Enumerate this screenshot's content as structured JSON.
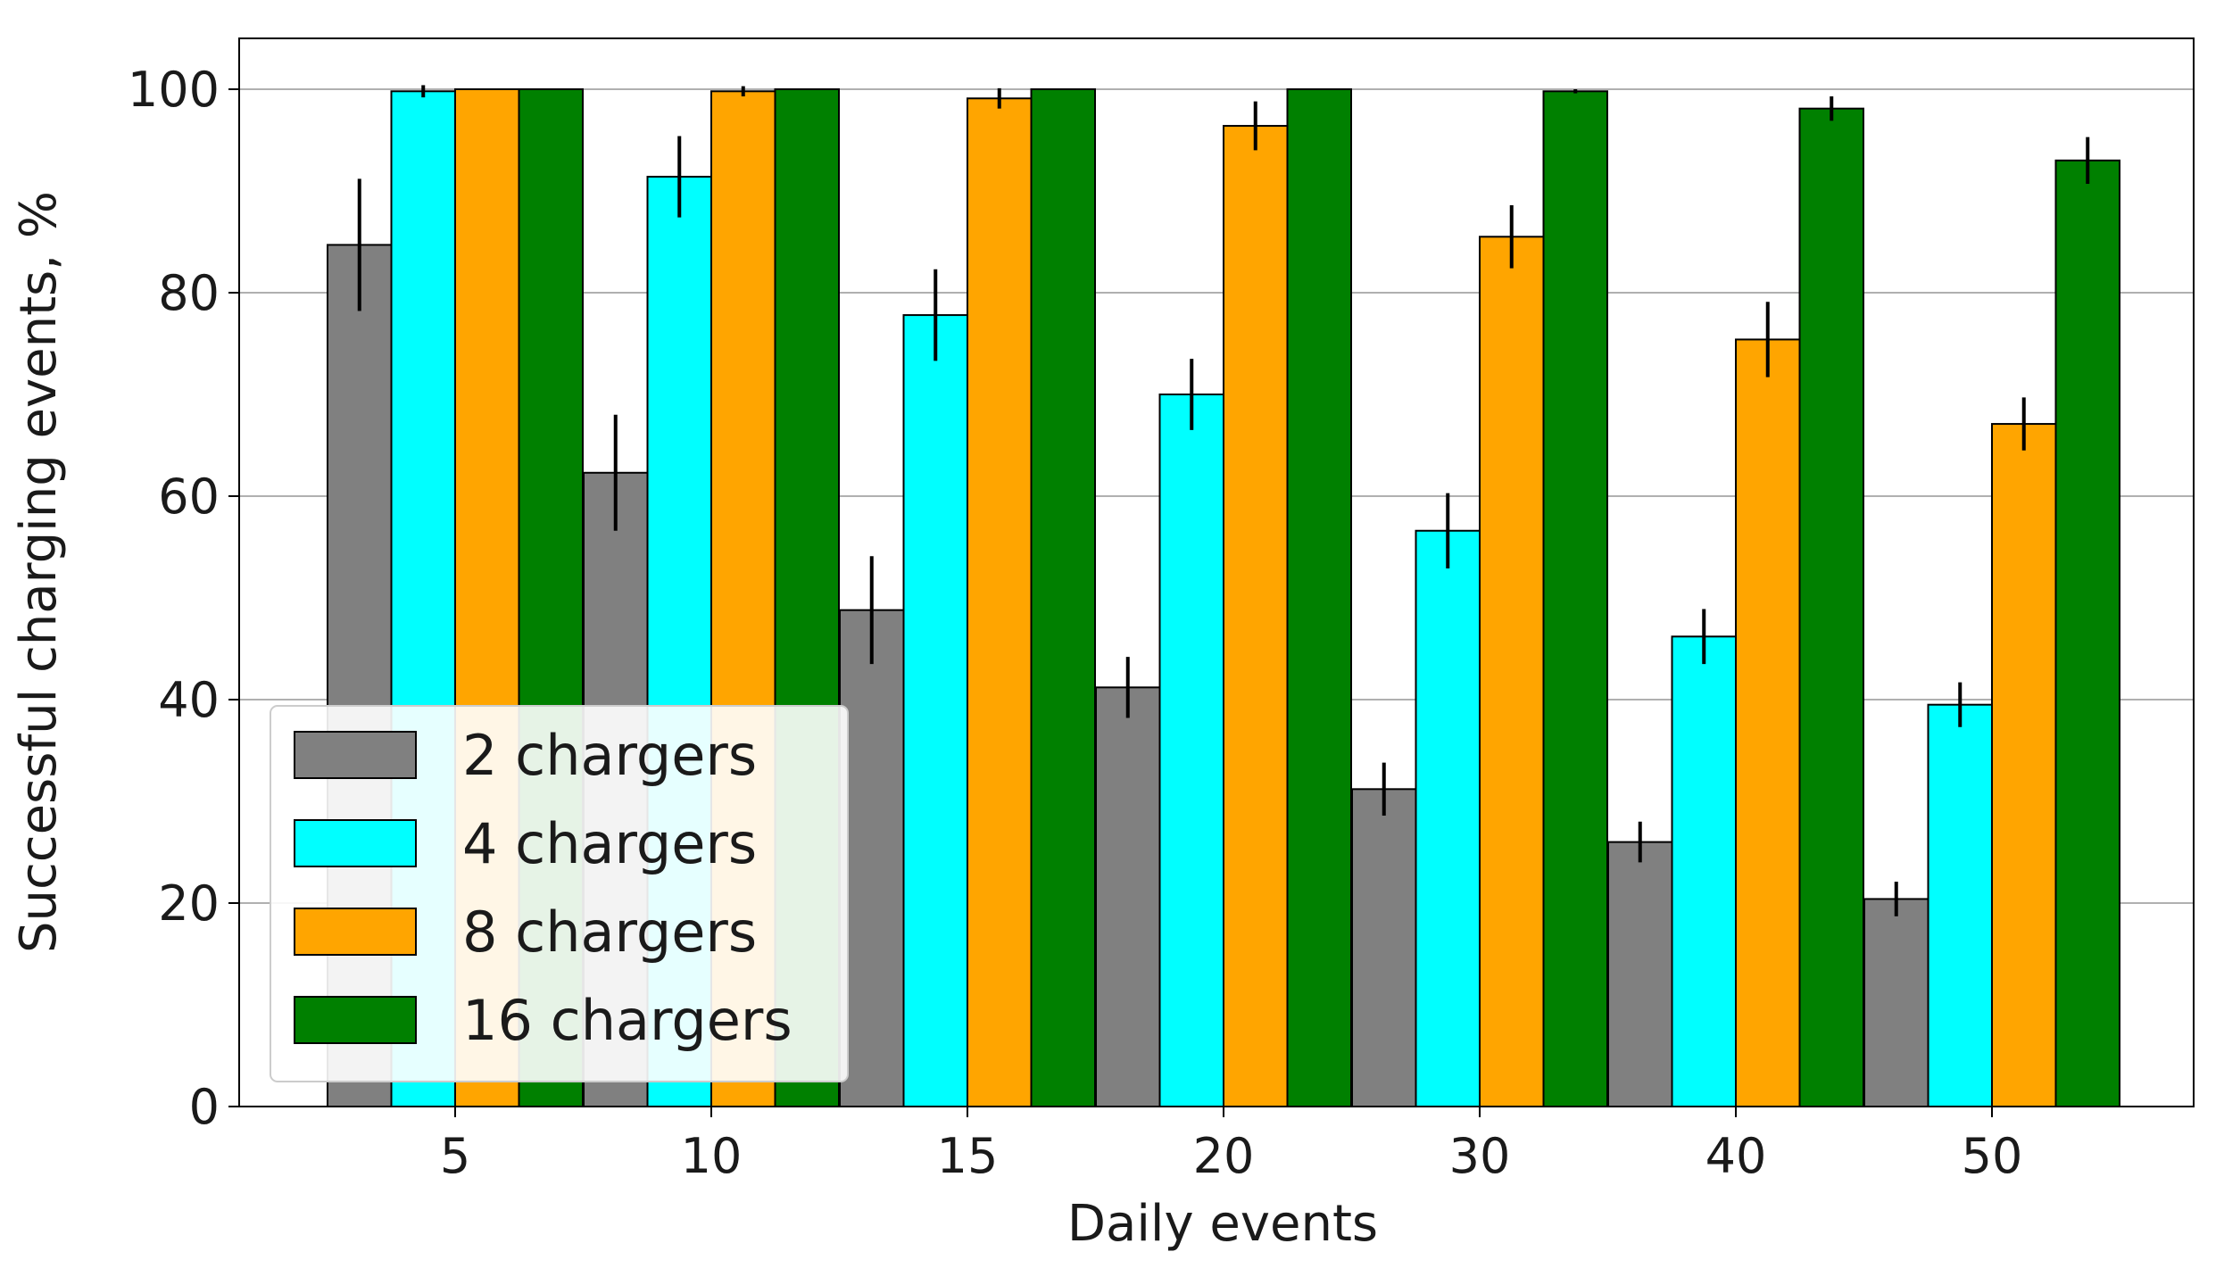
{
  "chart_data": {
    "type": "bar",
    "title": "",
    "xlabel": "Daily events",
    "ylabel": "Successful charging events, %",
    "ylim": [
      0,
      105
    ],
    "yticks": [
      0,
      20,
      40,
      60,
      80,
      100
    ],
    "grid": "horizontal",
    "legend_position": "lower-left",
    "categories": [
      "5",
      "10",
      "15",
      "20",
      "30",
      "40",
      "50"
    ],
    "series": [
      {
        "name": "2 chargers",
        "color": "#808080",
        "values": [
          84.7,
          62.3,
          48.8,
          41.2,
          31.2,
          26.0,
          20.4
        ],
        "errors": [
          6.5,
          5.7,
          5.3,
          3.0,
          2.6,
          2.0,
          1.7
        ]
      },
      {
        "name": "4 chargers",
        "color": "#00ffff",
        "values": [
          99.8,
          91.4,
          77.8,
          70.0,
          56.6,
          46.2,
          39.5
        ],
        "errors": [
          0.6,
          4.0,
          4.5,
          3.5,
          3.7,
          2.7,
          2.2
        ]
      },
      {
        "name": "8 chargers",
        "color": "#ffa500",
        "values": [
          100.0,
          99.8,
          99.1,
          96.4,
          85.5,
          75.4,
          67.1
        ],
        "errors": [
          0.0,
          0.5,
          1.0,
          2.4,
          3.1,
          3.7,
          2.6
        ]
      },
      {
        "name": "16 chargers",
        "color": "#008000",
        "values": [
          100.0,
          100.0,
          100.0,
          100.0,
          99.8,
          98.1,
          93.0
        ],
        "errors": [
          0.0,
          0.0,
          0.0,
          0.0,
          0.2,
          1.2,
          2.3
        ]
      }
    ]
  }
}
